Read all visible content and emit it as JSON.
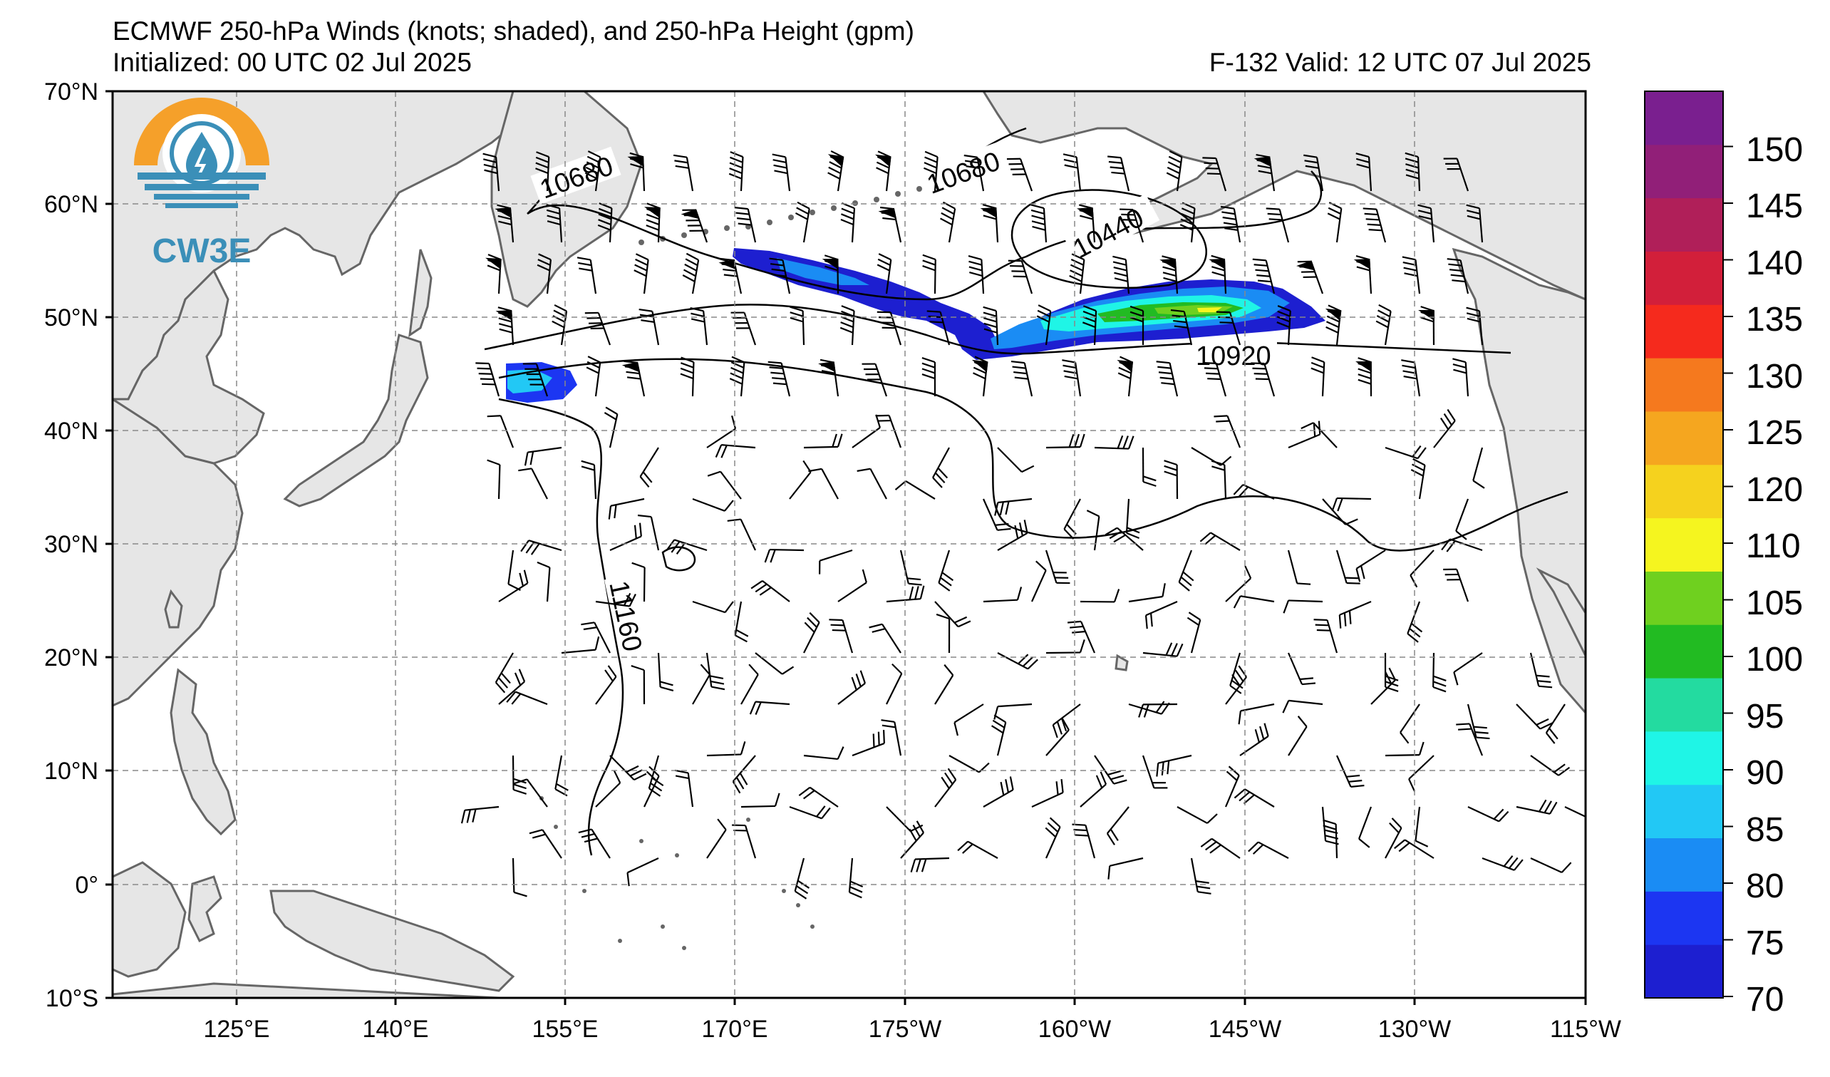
{
  "header": {
    "title": "ECMWF 250-hPa Winds (knots; shaded), and 250-hPa Height (gpm)",
    "initialized": "Initialized: 00 UTC 02 Jul 2025",
    "valid": "F-132  Valid: 12 UTC 07 Jul 2025"
  },
  "logo": {
    "text": "CW3E",
    "icon": "water-drop-sun-logo-icon"
  },
  "axes": {
    "lat_labels": [
      "70°N",
      "60°N",
      "50°N",
      "40°N",
      "30°N",
      "20°N",
      "10°N",
      "0°",
      "10°S"
    ],
    "lon_labels": [
      "125°E",
      "140°E",
      "155°E",
      "170°E",
      "175°W",
      "160°W",
      "145°W",
      "130°W",
      "115°W"
    ],
    "lat_range": [
      -10,
      70
    ],
    "lon_range_deg_east": [
      115,
      245
    ]
  },
  "contours": {
    "labels": [
      {
        "text": "10680"
      },
      {
        "text": "10680"
      },
      {
        "text": "10440"
      },
      {
        "text": "10920"
      },
      {
        "text": "11160"
      }
    ]
  },
  "colorbar": {
    "labels": [
      "70",
      "75",
      "80",
      "85",
      "90",
      "95",
      "100",
      "105",
      "110",
      "120",
      "125",
      "130",
      "135",
      "140",
      "145",
      "150"
    ],
    "colors": [
      "#1d1fd0",
      "#1c36f2",
      "#1a8cf4",
      "#22c8f5",
      "#1ff5e6",
      "#23dba0",
      "#22bb22",
      "#6fd01f",
      "#f5f51f",
      "#f5d21e",
      "#f5a61f",
      "#f5791e",
      "#f52a1d",
      "#d21f3a",
      "#b01f59",
      "#911f78",
      "#7a1f8f"
    ]
  },
  "colors": {
    "land": "#e6e6e6",
    "coast": "#666666",
    "grid": "#888888"
  }
}
